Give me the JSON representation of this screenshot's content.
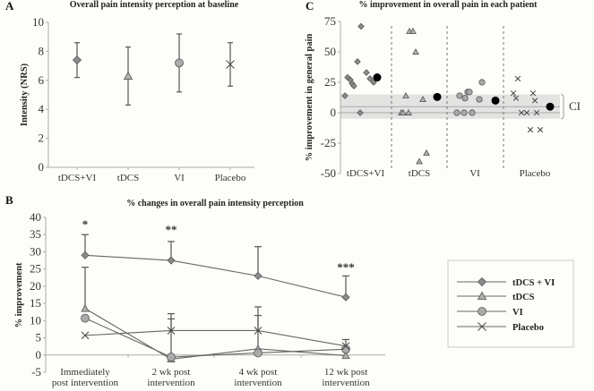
{
  "chart_data": [
    {
      "panel": "A",
      "type": "scatter",
      "title": "Overall pain intensity perception at baseline",
      "xlabel": "",
      "ylabel": "Intensity (NRS)",
      "ylim": [
        0,
        10
      ],
      "yticks": [
        0,
        2,
        4,
        6,
        8,
        10
      ],
      "categories": [
        "tDCS+VI",
        "tDCS",
        "VI",
        "Placebo"
      ],
      "series": [
        {
          "name": "tDCS+VI",
          "marker": "diamond",
          "value": 7.4,
          "err_low": 6.2,
          "err_high": 8.6
        },
        {
          "name": "tDCS",
          "marker": "triangle",
          "value": 6.3,
          "err_low": 4.3,
          "err_high": 8.3
        },
        {
          "name": "VI",
          "marker": "circle",
          "value": 7.2,
          "err_low": 5.2,
          "err_high": 9.2
        },
        {
          "name": "Placebo",
          "marker": "x",
          "value": 7.1,
          "err_low": 5.6,
          "err_high": 8.6
        }
      ],
      "grid": false
    },
    {
      "panel": "B",
      "type": "line",
      "title": "% changes in overall pain intensity perception",
      "xlabel": "",
      "ylabel": "% improvement",
      "ylim": [
        -5,
        40
      ],
      "yticks": [
        -5,
        0,
        5,
        10,
        15,
        20,
        25,
        30,
        35,
        40
      ],
      "categories": [
        [
          "Immediately",
          "post intervention"
        ],
        [
          "2 wk post",
          "intervention"
        ],
        [
          "4 wk post",
          "intervention"
        ],
        [
          "12 wk post",
          "intervention"
        ]
      ],
      "annotations": [
        "*",
        "**",
        "",
        "***"
      ],
      "series": [
        {
          "name": "tDCS + VI",
          "marker": "diamond",
          "values": [
            29,
            27.5,
            23,
            16.8
          ],
          "err_high": [
            35,
            33,
            null,
            23
          ],
          "err_high_alt": [
            null,
            null,
            31.5,
            null
          ]
        },
        {
          "name": "tDCS",
          "marker": "triangle",
          "values": [
            13.5,
            -1.2,
            1.8,
            -0.2
          ],
          "err_high": [
            25.5,
            null,
            null,
            null
          ]
        },
        {
          "name": "VI",
          "marker": "circle",
          "values": [
            10.7,
            -0.6,
            0.6,
            1.7
          ],
          "err_high": [
            null,
            10.5,
            11.5,
            null
          ]
        },
        {
          "name": "Placebo",
          "marker": "x",
          "values": [
            5.7,
            7.1,
            7.1,
            2.6
          ],
          "err_high": [
            null,
            12,
            14,
            4.5
          ]
        }
      ],
      "legend": {
        "position": "right",
        "entries": [
          "tDCS + VI",
          "tDCS",
          "VI",
          "Placebo"
        ]
      },
      "grid": false
    },
    {
      "panel": "C",
      "type": "scatter",
      "title": "% improvement in overall pain in each patient",
      "xlabel": "",
      "ylabel": "% improvement in general pain",
      "ylim": [
        -50,
        75
      ],
      "yticks": [
        -50,
        -25,
        0,
        25,
        50,
        75
      ],
      "categories": [
        "tDCS+VI",
        "tDCS",
        "VI",
        "Placebo"
      ],
      "groups": [
        {
          "name": "tDCS+VI",
          "marker": "diamond",
          "points": [
            14,
            29,
            27,
            24,
            22,
            42,
            0,
            71,
            33,
            28,
            25
          ],
          "mean": 29
        },
        {
          "name": "tDCS",
          "marker": "triangle",
          "points": [
            0,
            0,
            14,
            0,
            67,
            67,
            50,
            -40,
            11,
            -33
          ],
          "mean": 13
        },
        {
          "name": "VI",
          "marker": "circle",
          "points": [
            0,
            14,
            0,
            12,
            17,
            17,
            0,
            11,
            25
          ],
          "mean": 10
        },
        {
          "name": "Placebo",
          "marker": "x",
          "points": [
            16,
            12,
            28,
            0,
            0,
            -14,
            16,
            10,
            0,
            -14
          ],
          "mean": 5
        }
      ],
      "ci_band": [
        -5,
        15
      ],
      "ci_line": 5,
      "ci_label": "CI",
      "grid": false
    }
  ]
}
